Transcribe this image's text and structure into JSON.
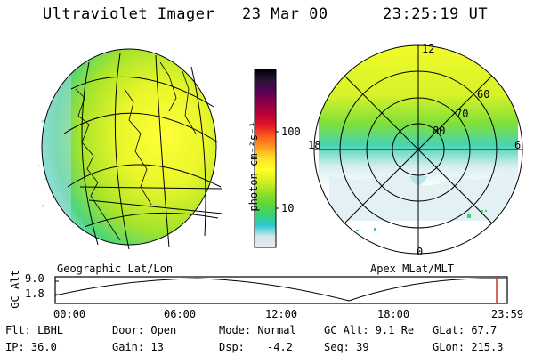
{
  "header": {
    "title": "Ultraviolet Imager",
    "date": "23 Mar 00",
    "time": "23:25:19 UT"
  },
  "colorbar": {
    "unit_label": "photon cm⁻²s⁻¹",
    "ticks": [
      "100",
      "10"
    ],
    "gradient": [
      "#e8ecf0",
      "#cfe6ec",
      "#2bc8cf",
      "#3bd36a",
      "#62d735",
      "#99e322",
      "#d7f020",
      "#ffff26",
      "#ffe12b",
      "#ff9a1f",
      "#ff5a1a",
      "#e0142a",
      "#b70036",
      "#8c0047",
      "#5a0056",
      "#281338",
      "#000000"
    ]
  },
  "geo_panel": {
    "caption": "Geographic Lat/Lon"
  },
  "polar_panel": {
    "caption": "Apex MLat/MLT",
    "mlt_labels": {
      "top": "12",
      "left": "18",
      "right": "6",
      "bottom": "0"
    },
    "lat_labels": [
      "80",
      "70",
      "60"
    ]
  },
  "timeline": {
    "ylabel": "GC Alt",
    "y_ticks": [
      "9.0",
      "1.8"
    ],
    "x_ticks": [
      "00:00",
      "06:00",
      "12:00",
      "18:00",
      "23:59"
    ],
    "current_marker_color": "#c0392b"
  },
  "footer": {
    "filter": "Flt: LBHL",
    "ip": "IP: 36.0",
    "door": "Door: Open",
    "gain": "Gain: 13",
    "mode": "Mode: Normal",
    "dsp_label": "Dsp:",
    "dsp_value": "-4.2",
    "gcalt": "GC Alt: 9.1 Re",
    "seq": "Seq: 39",
    "glat": "GLat: 67.7",
    "glon": "GLon: 215.3"
  }
}
